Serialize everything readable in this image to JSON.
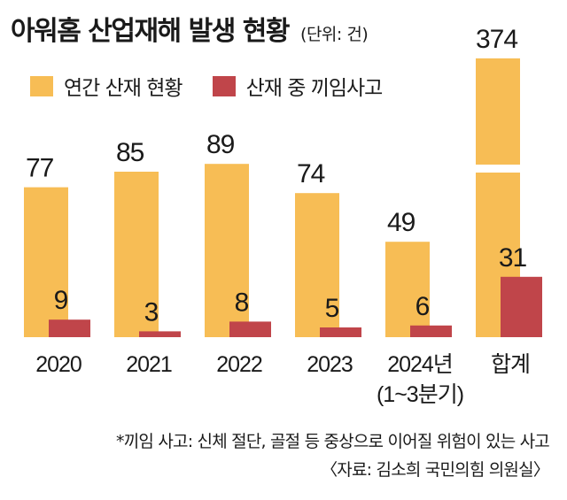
{
  "header": {
    "title": "아워홈 산업재해 발생 현황",
    "unit": "(단위: 건)"
  },
  "legend": [
    {
      "label": "연간 산재 현황",
      "color": "#F7BD55"
    },
    {
      "label": "산재 중 끼임사고",
      "color": "#C0454A"
    }
  ],
  "chart_data": {
    "type": "bar",
    "categories": [
      "2020",
      "2021",
      "2022",
      "2023",
      "2024년\n(1~3분기)",
      "합계"
    ],
    "series": [
      {
        "name": "연간 산재 현황",
        "values": [
          77,
          85,
          89,
          74,
          49,
          374
        ],
        "color": "#F7BD55"
      },
      {
        "name": "산재 중 끼임사고",
        "values": [
          9,
          3,
          8,
          5,
          6,
          31
        ],
        "color": "#C0454A"
      }
    ],
    "axis_break": {
      "category": "합계",
      "series": "연간 산재 현황"
    }
  },
  "footnotes": {
    "note": "*끼임 사고: 신체 절단, 골절 등 중상으로 이어질 위험이 있는 사고",
    "source": "〈자료: 김소희 국민의힘 의원실〉"
  }
}
